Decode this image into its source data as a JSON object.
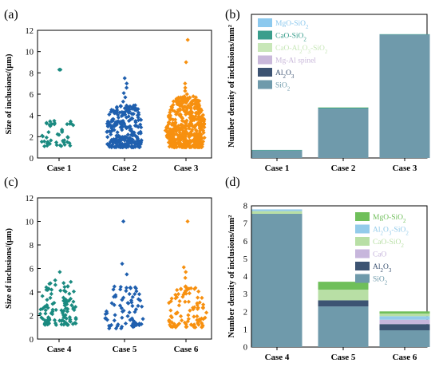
{
  "colors": {
    "teal": "#1a8a80",
    "blue": "#1f5fae",
    "orange": "#f7900f",
    "MgO-SiO2": "#6fbf5a",
    "MgO-SiO2_b": "#8cc9ee",
    "CaO-SiO2": "#3a9e8c",
    "CaO-SiO2_d": "#b8dfa5",
    "CaO-Al2O3-SiO2": "#c8e7b8",
    "Al2O3-SiO2": "#93cbea",
    "Mg-Al spinel": "#c9b8da",
    "CaO": "#c7b6dc",
    "Al2O3": "#3c5372",
    "SiO2": "#6f9aab"
  },
  "chart_data": [
    {
      "panel": "(a)",
      "type": "scatter",
      "categories": [
        "Case 1",
        "Case 2",
        "Case 3"
      ],
      "ylabel": "Size of inclusions/(μm)",
      "ylim": [
        0,
        12
      ],
      "yticks": [
        0,
        2,
        4,
        6,
        8,
        10,
        12
      ],
      "series": [
        {
          "category": "Case 1",
          "color": "teal",
          "count": 45,
          "min": 1.1,
          "max": 3.5,
          "outliers": [
            8.3,
            8.3
          ]
        },
        {
          "category": "Case 2",
          "color": "blue",
          "count": 260,
          "min": 1.0,
          "max": 5.0,
          "outliers": [
            5.3,
            5.7,
            6.1,
            6.6,
            7.0,
            7.5
          ]
        },
        {
          "category": "Case 3",
          "color": "orange",
          "count": 480,
          "min": 1.0,
          "max": 5.8,
          "outliers": [
            6.0,
            6.3,
            6.6,
            7.0,
            9.0,
            11.1
          ]
        }
      ]
    },
    {
      "panel": "(b)",
      "type": "bar",
      "stacked": true,
      "categories": [
        "Case 1",
        "Case 2",
        "Case 3"
      ],
      "ylabel": "Number density of inclusions/mm²",
      "yticks": false,
      "legend": [
        "MgO-SiO2",
        "CaO-SiO2",
        "CaO-Al2O3-SiO2",
        "Mg-Al spinel",
        "Al2O3",
        "SiO2"
      ],
      "legend_colors": [
        "MgO-SiO2_b",
        "CaO-SiO2",
        "CaO-Al2O3-SiO2",
        "Mg-Al spinel",
        "Al2O3",
        "SiO2"
      ],
      "stacks": [
        {
          "category": "Case 1",
          "segments": [
            {
              "name": "SiO2",
              "value": 2.6
            },
            {
              "name": "CaO-SiO2",
              "value": 0.2
            }
          ]
        },
        {
          "category": "Case 2",
          "segments": [
            {
              "name": "SiO2",
              "value": 17.2
            },
            {
              "name": "CaO-SiO2",
              "value": 0.3
            },
            {
              "name": "CaO-Al2O3-SiO2",
              "value": 0.2
            }
          ]
        },
        {
          "category": "Case 3",
          "segments": [
            {
              "name": "SiO2",
              "value": 43.0
            },
            {
              "name": "CaO-SiO2",
              "value": 0.1
            }
          ]
        }
      ],
      "ylim": [
        0,
        50
      ]
    },
    {
      "panel": "(c)",
      "type": "scatter",
      "categories": [
        "Case 4",
        "Case 5",
        "Case 6"
      ],
      "ylabel": "Size of inclusions/(μm)",
      "ylim": [
        0,
        12
      ],
      "yticks": [
        0,
        2,
        4,
        6,
        8,
        10,
        12
      ],
      "series": [
        {
          "category": "Case 4",
          "color": "teal",
          "count": 110,
          "min": 1.2,
          "max": 5.0,
          "outliers": [
            5.7
          ]
        },
        {
          "category": "Case 5",
          "color": "blue",
          "count": 75,
          "min": 0.9,
          "max": 4.5,
          "outliers": [
            5.5,
            6.4,
            10.0
          ]
        },
        {
          "category": "Case 6",
          "color": "orange",
          "count": 95,
          "min": 1.0,
          "max": 4.5,
          "outliers": [
            5.2,
            5.7,
            6.1,
            10.0
          ]
        }
      ]
    },
    {
      "panel": "(d)",
      "type": "bar",
      "stacked": true,
      "categories": [
        "Case 4",
        "Case 5",
        "Case 6"
      ],
      "ylabel": "Number density of inclusions/mm²",
      "ylim": [
        0,
        8
      ],
      "yticks": [
        0,
        1,
        2,
        3,
        4,
        5,
        6,
        7,
        8
      ],
      "legend": [
        "MgO-SiO2",
        "Al2O3-SiO2",
        "CaO-SiO2",
        "CaO",
        "Al2O3",
        "SiO2"
      ],
      "legend_colors": [
        "MgO-SiO2",
        "Al2O3-SiO2",
        "CaO-SiO2_d",
        "CaO",
        "Al2O3",
        "SiO2"
      ],
      "stacks": [
        {
          "category": "Case 4",
          "segments": [
            {
              "name": "SiO2",
              "value": 7.55
            },
            {
              "name": "CaO-SiO2",
              "value": 0.15
            },
            {
              "name": "Al2O3-SiO2",
              "value": 0.1
            }
          ]
        },
        {
          "category": "Case 5",
          "segments": [
            {
              "name": "SiO2",
              "value": 2.3
            },
            {
              "name": "Al2O3",
              "value": 0.35
            },
            {
              "name": "CaO-SiO2",
              "value": 0.6
            },
            {
              "name": "MgO-SiO2",
              "value": 0.45
            }
          ]
        },
        {
          "category": "Case 6",
          "segments": [
            {
              "name": "SiO2",
              "value": 0.95
            },
            {
              "name": "Al2O3",
              "value": 0.35
            },
            {
              "name": "CaO",
              "value": 0.25
            },
            {
              "name": "Al2O3-SiO2",
              "value": 0.2
            },
            {
              "name": "CaO-SiO2",
              "value": 0.15
            },
            {
              "name": "MgO-SiO2",
              "value": 0.12
            }
          ]
        }
      ]
    }
  ]
}
